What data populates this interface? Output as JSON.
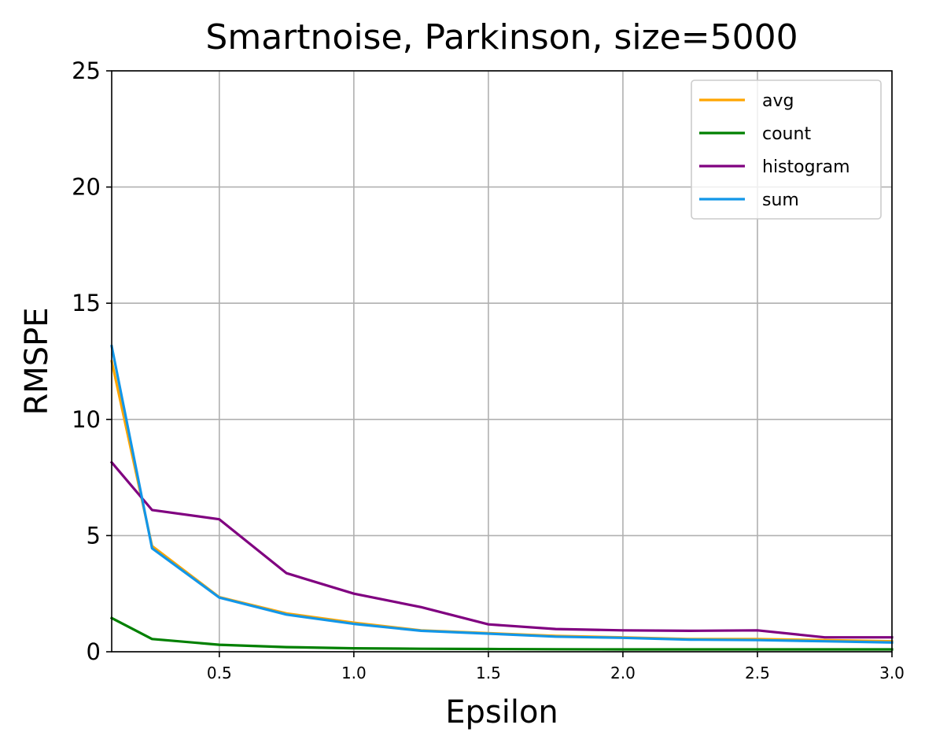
{
  "chart_data": {
    "type": "line",
    "title": "Smartnoise, Parkinson, size=5000",
    "xlabel": "Epsilon",
    "ylabel": "RMSPE",
    "xlim": [
      0.1,
      3.0
    ],
    "ylim": [
      0,
      25
    ],
    "xticks": [
      "0.5",
      "1.0",
      "1.5",
      "2.0",
      "2.5",
      "3.0"
    ],
    "xtick_values": [
      0.5,
      1.0,
      1.5,
      2.0,
      2.5,
      3.0
    ],
    "yticks": [
      "0",
      "5",
      "10",
      "15",
      "20",
      "25"
    ],
    "ytick_values": [
      0,
      5,
      10,
      15,
      20,
      25
    ],
    "grid": true,
    "legend_position": "top-right",
    "x": [
      0.1,
      0.25,
      0.5,
      0.75,
      1.0,
      1.25,
      1.5,
      1.75,
      2.0,
      2.25,
      2.5,
      2.75,
      3.0
    ],
    "series": [
      {
        "name": "avg",
        "color": "#FFA500",
        "values": [
          12.5,
          4.55,
          2.35,
          1.65,
          1.25,
          0.92,
          0.8,
          0.68,
          0.62,
          0.55,
          0.55,
          0.5,
          0.45
        ]
      },
      {
        "name": "count",
        "color": "#008000",
        "values": [
          1.45,
          0.55,
          0.3,
          0.2,
          0.15,
          0.13,
          0.12,
          0.11,
          0.1,
          0.1,
          0.1,
          0.1,
          0.1
        ]
      },
      {
        "name": "histogram",
        "color": "#800080",
        "values": [
          8.15,
          6.1,
          5.7,
          3.38,
          2.5,
          1.92,
          1.18,
          0.98,
          0.92,
          0.9,
          0.92,
          0.62,
          0.62
        ]
      },
      {
        "name": "sum",
        "color": "#1296E8",
        "values": [
          13.15,
          4.45,
          2.33,
          1.6,
          1.2,
          0.9,
          0.78,
          0.65,
          0.6,
          0.52,
          0.5,
          0.45,
          0.4
        ]
      }
    ]
  }
}
